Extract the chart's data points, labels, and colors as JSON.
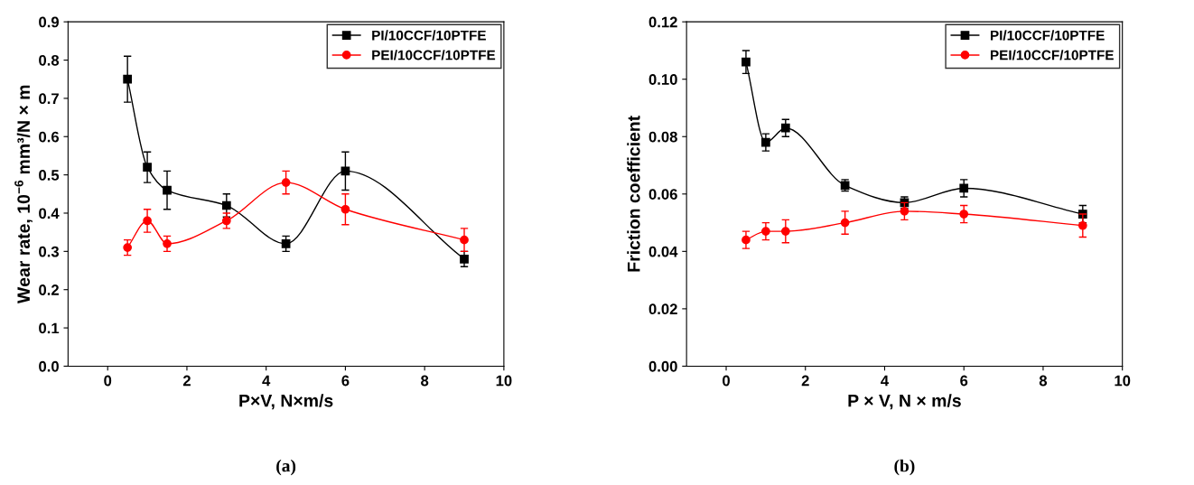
{
  "chart_data": [
    {
      "type": "line",
      "xlabel": "P×V, N×m/s",
      "ylabel": "Wear rate, 10$^{−6}$ mm³/N × m",
      "annotations": [
        "(a)"
      ],
      "x": [
        0.5,
        1,
        1.5,
        3,
        4.5,
        6,
        9
      ],
      "xlim": [
        -1,
        10
      ],
      "xticks": [
        0,
        2,
        4,
        6,
        8,
        10
      ],
      "ylim": [
        0,
        0.9
      ],
      "yticks": [
        {
          "value": 0,
          "label": "0.0"
        },
        0.1,
        0.2,
        0.3,
        0.4,
        0.5,
        0.6,
        0.7,
        0.8,
        0.9
      ],
      "legend": "top right",
      "grid": false,
      "series": [
        {
          "name": "PI/10CCF/10PTFE",
          "color": "#000000",
          "marker": "square",
          "values": [
            0.75,
            0.52,
            0.46,
            0.42,
            0.32,
            0.51,
            0.28
          ],
          "errors": [
            0.06,
            0.04,
            0.05,
            0.03,
            0.02,
            0.05,
            0.02
          ]
        },
        {
          "name": "PEI/10CCF/10PTFE",
          "color": "#ff0000",
          "marker": "circle",
          "values": [
            0.31,
            0.38,
            0.32,
            0.38,
            0.48,
            0.41,
            0.33
          ],
          "errors": [
            0.02,
            0.03,
            0.02,
            0.02,
            0.03,
            0.04,
            0.03
          ]
        }
      ]
    },
    {
      "type": "line",
      "xlabel": "P × V, N × m/s",
      "ylabel": "Friction coefficient",
      "annotations": [
        "(b)"
      ],
      "x": [
        0.5,
        1,
        1.5,
        3,
        4.5,
        6,
        9
      ],
      "xlim": [
        -1,
        10
      ],
      "xticks": [
        0,
        2,
        4,
        6,
        8,
        10
      ],
      "ylim": [
        0,
        0.12
      ],
      "yticks": [
        {
          "value": 0,
          "label": "0.00"
        },
        {
          "value": 0.02,
          "label": "0.02"
        },
        {
          "value": 0.04,
          "label": "0.04"
        },
        {
          "value": 0.06,
          "label": "0.06"
        },
        {
          "value": 0.08,
          "label": "0.08"
        },
        {
          "value": 0.1,
          "label": "0.10"
        },
        {
          "value": 0.12,
          "label": "0.12"
        }
      ],
      "legend": "top right",
      "grid": false,
      "series": [
        {
          "name": "PI/10CCF/10PTFE",
          "color": "#000000",
          "marker": "square",
          "values": [
            0.106,
            0.078,
            0.083,
            0.063,
            0.057,
            0.062,
            0.053
          ],
          "errors": [
            0.004,
            0.003,
            0.003,
            0.002,
            0.002,
            0.003,
            0.003
          ]
        },
        {
          "name": "PEI/10CCF/10PTFE",
          "color": "#ff0000",
          "marker": "circle",
          "values": [
            0.044,
            0.047,
            0.047,
            0.05,
            0.054,
            0.053,
            0.049
          ],
          "errors": [
            0.003,
            0.003,
            0.004,
            0.004,
            0.003,
            0.003,
            0.004
          ]
        }
      ]
    }
  ]
}
